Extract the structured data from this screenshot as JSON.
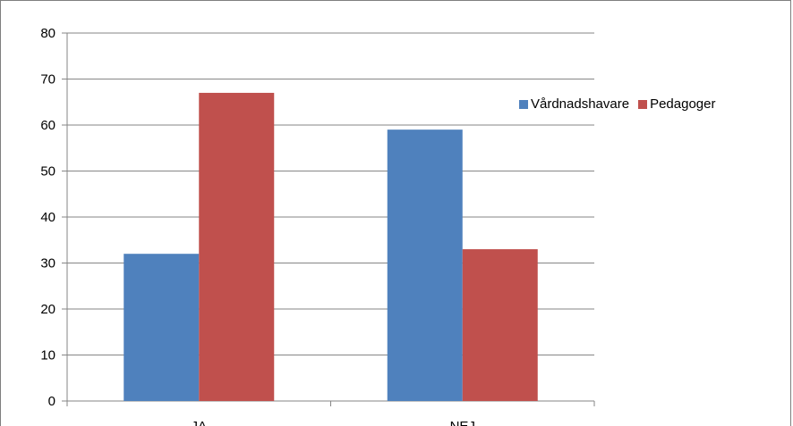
{
  "chart_data": {
    "type": "bar",
    "categories": [
      "JA",
      "NEJ"
    ],
    "series": [
      {
        "name": "Vårdnadshavare",
        "values": [
          32,
          59
        ],
        "color": "#4f81bd"
      },
      {
        "name": "Pedagoger",
        "values": [
          67,
          33
        ],
        "color": "#c0504d"
      }
    ],
    "title": "",
    "xlabel": "",
    "ylabel": "",
    "ylim": [
      0,
      80
    ],
    "yticks": [
      0,
      10,
      20,
      30,
      40,
      50,
      60,
      70,
      80
    ],
    "grid": true,
    "legend_position": "right"
  }
}
